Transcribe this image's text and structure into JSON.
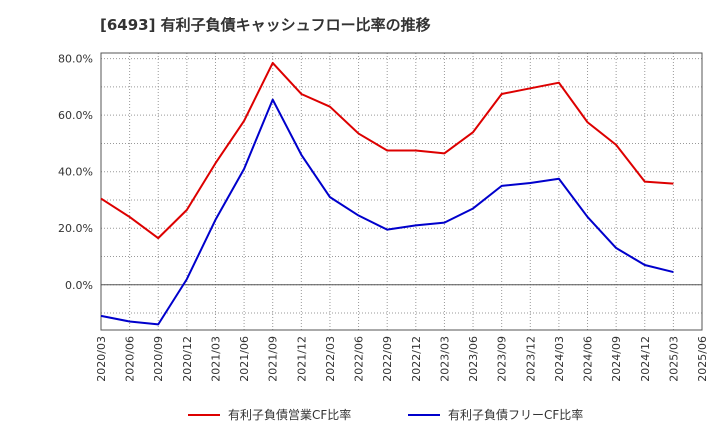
{
  "chart_data": {
    "type": "line",
    "title": "[6493]  有利子負債キャッシュフロー比率の推移",
    "xlabel": "",
    "ylabel": "",
    "x": [
      "2020/03",
      "2020/06",
      "2020/09",
      "2020/12",
      "2021/03",
      "2021/06",
      "2021/09",
      "2021/12",
      "2022/03",
      "2022/06",
      "2022/09",
      "2022/12",
      "2023/03",
      "2023/06",
      "2023/09",
      "2023/12",
      "2024/03",
      "2024/06",
      "2024/09",
      "2024/12",
      "2025/03"
    ],
    "x_ticks": [
      "2020/03",
      "2020/06",
      "2020/09",
      "2020/12",
      "2021/03",
      "2021/06",
      "2021/09",
      "2021/12",
      "2022/03",
      "2022/06",
      "2022/09",
      "2022/12",
      "2023/03",
      "2023/06",
      "2023/09",
      "2023/12",
      "2024/03",
      "2024/06",
      "2024/09",
      "2024/12",
      "2025/03",
      "2025/06"
    ],
    "ylim": [
      -16,
      82
    ],
    "y_ticks": [
      0,
      20,
      40,
      60,
      80
    ],
    "y_tick_labels": [
      "0.0%",
      "20.0%",
      "40.0%",
      "60.0%",
      "80.0%"
    ],
    "grid": true,
    "legend_position": "bottom",
    "series": [
      {
        "name": "有利子負債営業CF比率",
        "color": "#dd0000",
        "values": [
          30.5,
          24,
          16.5,
          26.5,
          43,
          58,
          78.5,
          67.5,
          63,
          53.5,
          47.5,
          47.5,
          46.5,
          54,
          67.5,
          69.5,
          71.5,
          57.5,
          49.5,
          36.5,
          35.8
        ]
      },
      {
        "name": "有利子負債フリーCF比率",
        "color": "#0000cc",
        "values": [
          -11,
          -13,
          -14,
          2,
          23,
          41,
          65.5,
          46,
          31,
          24.5,
          19.5,
          21,
          22,
          27,
          35,
          36,
          37.5,
          24,
          13,
          7,
          4.5
        ]
      }
    ]
  }
}
